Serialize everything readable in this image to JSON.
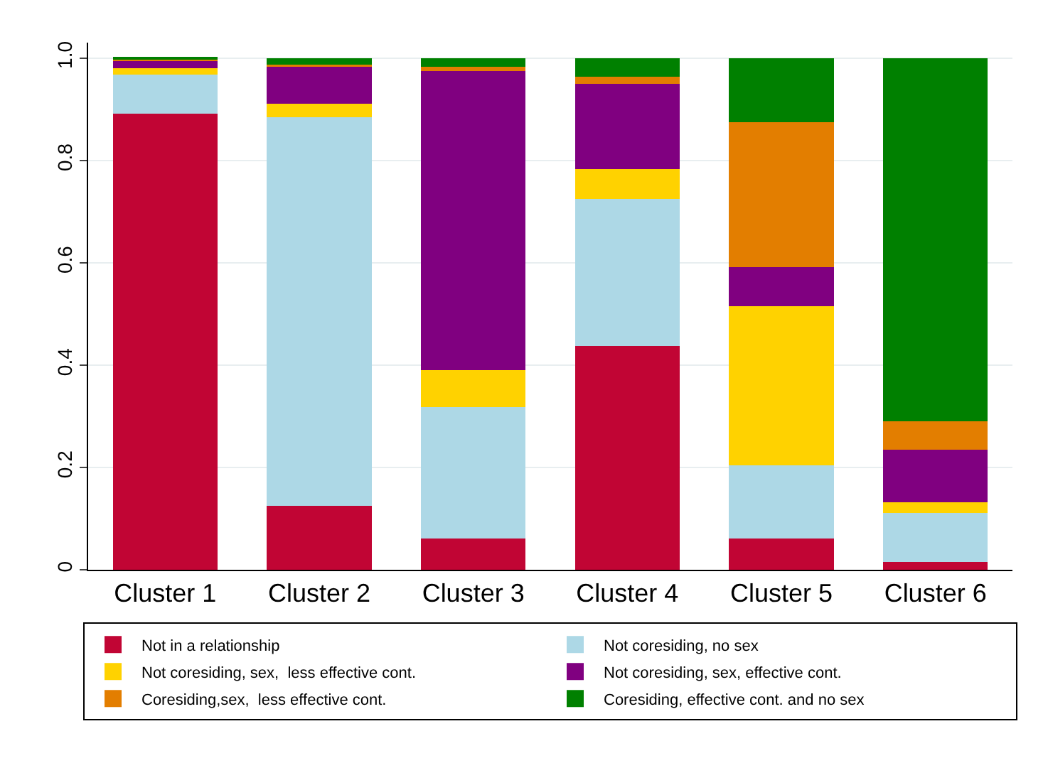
{
  "chart_data": {
    "type": "bar",
    "stacked": true,
    "categories": [
      "Cluster 1",
      "Cluster 2",
      "Cluster 3",
      "Cluster 4",
      "Cluster 5",
      "Cluster 6"
    ],
    "series": [
      {
        "name": "Not in a relationship",
        "color": "#c10534",
        "values": [
          0.891,
          0.125,
          0.061,
          0.437,
          0.061,
          0.015
        ]
      },
      {
        "name": "Not coresiding, no sex",
        "color": "#add8e6",
        "values": [
          0.077,
          0.759,
          0.257,
          0.287,
          0.143,
          0.096
        ]
      },
      {
        "name": "Not coresiding, sex,  less effective cont.",
        "color": "#ffd200",
        "values": [
          0.012,
          0.027,
          0.072,
          0.059,
          0.311,
          0.021
        ]
      },
      {
        "name": "Not coresiding, sex, effective cont.",
        "color": "#800080",
        "values": [
          0.014,
          0.073,
          0.585,
          0.167,
          0.077,
          0.102
        ]
      },
      {
        "name": "Coresiding,sex,  less effective cont.",
        "color": "#e37e00",
        "values": [
          0.004,
          0.003,
          0.008,
          0.014,
          0.283,
          0.056
        ]
      },
      {
        "name": "Coresiding, effective cont. and no sex",
        "color": "#008000",
        "values": [
          0.002,
          0.013,
          0.017,
          0.036,
          0.125,
          0.71
        ]
      }
    ],
    "ylim": [
      0,
      1.03
    ],
    "yticks": [
      0,
      0.2,
      0.4,
      0.6,
      0.8,
      {
        "value": 1,
        "label": "1.0"
      }
    ],
    "grid": "y",
    "legend": "bottom"
  }
}
